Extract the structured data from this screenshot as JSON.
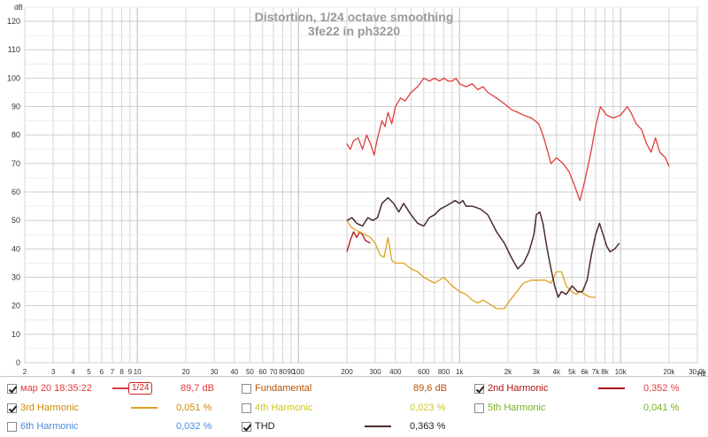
{
  "chart_data": {
    "type": "line",
    "title": "Distortion, 1/24 octave smoothing",
    "subtitle": "3fe22 in ph3220",
    "ylabel": "dB",
    "xunit": "Hz",
    "xscale": "log",
    "xlim": [
      2,
      30000
    ],
    "ylim": [
      0,
      125
    ],
    "grid": true,
    "background": "#ffffff",
    "grid_color": "#d4d4d4",
    "x_ticks": [
      {
        "v": 2,
        "l": "2"
      },
      {
        "v": 3,
        "l": "3"
      },
      {
        "v": 4,
        "l": "4"
      },
      {
        "v": 5,
        "l": "5"
      },
      {
        "v": 6,
        "l": "6"
      },
      {
        "v": 7,
        "l": "7"
      },
      {
        "v": 8,
        "l": "8"
      },
      {
        "v": 9,
        "l": "9"
      },
      {
        "v": 10,
        "l": "10"
      },
      {
        "v": 20,
        "l": "20"
      },
      {
        "v": 30,
        "l": "30"
      },
      {
        "v": 40,
        "l": "40"
      },
      {
        "v": 50,
        "l": "50"
      },
      {
        "v": 60,
        "l": "60"
      },
      {
        "v": 70,
        "l": "70"
      },
      {
        "v": 80,
        "l": "80"
      },
      {
        "v": 90,
        "l": "90"
      },
      {
        "v": 100,
        "l": "100"
      },
      {
        "v": 200,
        "l": "200"
      },
      {
        "v": 300,
        "l": "300"
      },
      {
        "v": 400,
        "l": "400"
      },
      {
        "v": 600,
        "l": "600"
      },
      {
        "v": 800,
        "l": "800"
      },
      {
        "v": 1000,
        "l": "1k"
      },
      {
        "v": 2000,
        "l": "2k"
      },
      {
        "v": 3000,
        "l": "3k"
      },
      {
        "v": 4000,
        "l": "4k"
      },
      {
        "v": 5000,
        "l": "5k"
      },
      {
        "v": 6000,
        "l": "6k"
      },
      {
        "v": 7000,
        "l": "7k"
      },
      {
        "v": 8000,
        "l": "8k"
      },
      {
        "v": 10000,
        "l": "10k"
      },
      {
        "v": 20000,
        "l": "20k"
      },
      {
        "v": 30000,
        "l": "30,0k"
      }
    ],
    "y_ticks": [
      0,
      10,
      20,
      30,
      40,
      50,
      60,
      70,
      80,
      90,
      100,
      110,
      120
    ],
    "series": [
      {
        "key": "main",
        "name": "мар 20 18:35:22",
        "color": "#e03c3c",
        "width": 1.3,
        "points": [
          [
            200,
            77
          ],
          [
            210,
            75
          ],
          [
            220,
            78
          ],
          [
            235,
            79
          ],
          [
            250,
            75
          ],
          [
            265,
            80
          ],
          [
            280,
            77
          ],
          [
            295,
            73
          ],
          [
            310,
            79
          ],
          [
            330,
            85
          ],
          [
            345,
            83
          ],
          [
            360,
            88
          ],
          [
            380,
            84
          ],
          [
            400,
            90
          ],
          [
            430,
            93
          ],
          [
            460,
            92
          ],
          [
            500,
            95
          ],
          [
            550,
            97
          ],
          [
            600,
            100
          ],
          [
            650,
            99
          ],
          [
            700,
            100
          ],
          [
            750,
            99
          ],
          [
            800,
            100
          ],
          [
            850,
            99
          ],
          [
            900,
            99
          ],
          [
            950,
            100
          ],
          [
            1000,
            98
          ],
          [
            1100,
            97
          ],
          [
            1200,
            98
          ],
          [
            1300,
            96
          ],
          [
            1400,
            97
          ],
          [
            1500,
            95
          ],
          [
            1700,
            93
          ],
          [
            1900,
            91
          ],
          [
            2100,
            89
          ],
          [
            2300,
            88
          ],
          [
            2500,
            87
          ],
          [
            2800,
            86
          ],
          [
            3100,
            84
          ],
          [
            3300,
            80
          ],
          [
            3500,
            75
          ],
          [
            3700,
            70
          ],
          [
            4000,
            72
          ],
          [
            4400,
            70
          ],
          [
            4800,
            67
          ],
          [
            5200,
            62
          ],
          [
            5600,
            57
          ],
          [
            6000,
            64
          ],
          [
            6500,
            73
          ],
          [
            7000,
            83
          ],
          [
            7500,
            90
          ],
          [
            8200,
            87
          ],
          [
            9000,
            86
          ],
          [
            10000,
            87
          ],
          [
            11000,
            90
          ],
          [
            11600,
            88
          ],
          [
            12500,
            84
          ],
          [
            13500,
            82
          ],
          [
            14500,
            77
          ],
          [
            15500,
            74
          ],
          [
            16500,
            79
          ],
          [
            17500,
            74
          ],
          [
            19000,
            72
          ],
          [
            20000,
            69
          ]
        ]
      },
      {
        "key": "h2",
        "name": "2nd Harmonic",
        "color": "#b01010",
        "width": 1.3,
        "points": [
          [
            200,
            39
          ],
          [
            210,
            43
          ],
          [
            220,
            46
          ],
          [
            230,
            44
          ],
          [
            240,
            46
          ],
          [
            250,
            45
          ],
          [
            260,
            43
          ],
          [
            280,
            42
          ]
        ]
      },
      {
        "key": "h3",
        "name": "3rd Harmonic",
        "color": "#e0a020",
        "width": 1.3,
        "points": [
          [
            200,
            50
          ],
          [
            210,
            48
          ],
          [
            220,
            47
          ],
          [
            240,
            46
          ],
          [
            260,
            45
          ],
          [
            280,
            44
          ],
          [
            300,
            42
          ],
          [
            320,
            38
          ],
          [
            340,
            37
          ],
          [
            360,
            44
          ],
          [
            380,
            36
          ],
          [
            400,
            35
          ],
          [
            450,
            35
          ],
          [
            500,
            33
          ],
          [
            550,
            32
          ],
          [
            600,
            30
          ],
          [
            700,
            28
          ],
          [
            800,
            30
          ],
          [
            900,
            27
          ],
          [
            1000,
            25
          ],
          [
            1100,
            24
          ],
          [
            1200,
            22
          ],
          [
            1300,
            21
          ],
          [
            1400,
            22
          ],
          [
            1500,
            21
          ],
          [
            1600,
            20
          ],
          [
            1700,
            19
          ],
          [
            1800,
            19
          ],
          [
            1900,
            19
          ],
          [
            2000,
            21
          ],
          [
            2200,
            24
          ],
          [
            2500,
            28
          ],
          [
            2800,
            29
          ],
          [
            3100,
            29
          ],
          [
            3400,
            29
          ],
          [
            3700,
            28
          ],
          [
            4000,
            32
          ],
          [
            4300,
            32
          ],
          [
            4600,
            27
          ],
          [
            5000,
            25
          ],
          [
            5300,
            24
          ],
          [
            5600,
            25
          ],
          [
            6000,
            24
          ],
          [
            6500,
            23
          ],
          [
            7000,
            23
          ]
        ]
      },
      {
        "key": "thd",
        "name": "THD",
        "color": "#4a2b2b",
        "width": 1.5,
        "points": [
          [
            200,
            50
          ],
          [
            215,
            51
          ],
          [
            230,
            49
          ],
          [
            250,
            48
          ],
          [
            270,
            51
          ],
          [
            290,
            50
          ],
          [
            310,
            51
          ],
          [
            330,
            56
          ],
          [
            360,
            58
          ],
          [
            390,
            56
          ],
          [
            420,
            53
          ],
          [
            450,
            56
          ],
          [
            500,
            52
          ],
          [
            550,
            49
          ],
          [
            600,
            48
          ],
          [
            650,
            51
          ],
          [
            700,
            52
          ],
          [
            760,
            54
          ],
          [
            820,
            55
          ],
          [
            880,
            56
          ],
          [
            940,
            57
          ],
          [
            1000,
            56
          ],
          [
            1050,
            57
          ],
          [
            1100,
            55
          ],
          [
            1200,
            55
          ],
          [
            1350,
            54
          ],
          [
            1500,
            52
          ],
          [
            1700,
            46
          ],
          [
            1900,
            42
          ],
          [
            2100,
            37
          ],
          [
            2300,
            33
          ],
          [
            2500,
            35
          ],
          [
            2700,
            39
          ],
          [
            2900,
            45
          ],
          [
            3000,
            52
          ],
          [
            3150,
            53
          ],
          [
            3300,
            49
          ],
          [
            3500,
            40
          ],
          [
            3700,
            33
          ],
          [
            3900,
            27
          ],
          [
            4100,
            23
          ],
          [
            4300,
            25
          ],
          [
            4600,
            24
          ],
          [
            5000,
            27
          ],
          [
            5400,
            25
          ],
          [
            5800,
            25
          ],
          [
            6200,
            29
          ],
          [
            6600,
            38
          ],
          [
            7000,
            45
          ],
          [
            7400,
            49
          ],
          [
            7800,
            45
          ],
          [
            8200,
            41
          ],
          [
            8600,
            39
          ],
          [
            9200,
            40
          ],
          [
            9800,
            42
          ]
        ]
      }
    ]
  },
  "legend": {
    "row1": {
      "main_label": "мар 20 18:35:22",
      "smoothing": "1/24",
      "main_value": "89,7 dB",
      "fund_label": "Fundamental",
      "fund_value": "89,6 dB",
      "h2_label": "2nd Harmonic",
      "h2_value": "0,352 %"
    },
    "row2": {
      "h3_label": "3rd Harmonic",
      "h3_value": "0,051 %",
      "h4_label": "4th Harmonic",
      "h4_value": "0,023 %",
      "h5_label": "5th Harmonic",
      "h5_value": "0,041 %"
    },
    "row3": {
      "h6_label": "6th Harmonic",
      "h6_value": "0,032 %",
      "thd_label": "THD",
      "thd_value": "0,363 %"
    },
    "colors": {
      "main": "#e03c3c",
      "fund": "#b8500a",
      "h2": "#b01010",
      "h3": "#d08a00",
      "h4": "#c8c820",
      "h5": "#7ab020",
      "h6": "#4a8adf",
      "thd": "#222222"
    }
  }
}
